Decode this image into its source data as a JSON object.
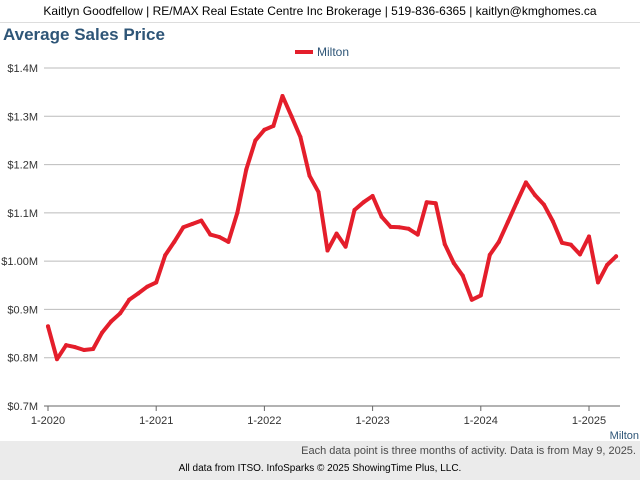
{
  "header": {
    "contact_line": "Kaitlyn Goodfellow | RE/MAX Real Estate Centre Inc Brokerage | 519-836-6365 | kaitlyn@kmghomes.ca"
  },
  "note": "Each data point is three months of activity. Data is from May 9, 2025.",
  "footer": "All data from ITSO. InfoSparks © 2025 ShowingTime Plus, LLC.",
  "colors": {
    "series": "#e41e2b",
    "title": "#2e5577",
    "grid": "#bbbbbb"
  },
  "chart_data": {
    "type": "line",
    "title": "Average Sales Price",
    "xlabel": "",
    "ylabel": "",
    "ylim": [
      700000,
      1400000
    ],
    "yticks": [
      {
        "value": 1400000,
        "label": "$1.4M"
      },
      {
        "value": 1300000,
        "label": "$1.3M"
      },
      {
        "value": 1200000,
        "label": "$1.2M"
      },
      {
        "value": 1100000,
        "label": "$1.1M"
      },
      {
        "value": 1000000,
        "label": "$1.00M"
      },
      {
        "value": 900000,
        "label": "$0.9M"
      },
      {
        "value": 800000,
        "label": "$0.8M"
      },
      {
        "value": 700000,
        "label": "$0.7M"
      }
    ],
    "xlim": [
      2020.0,
      2025.333
    ],
    "xticks": [
      {
        "value": 2020.0,
        "label": "1-2020"
      },
      {
        "value": 2021.0,
        "label": "1-2021"
      },
      {
        "value": 2022.0,
        "label": "1-2022"
      },
      {
        "value": 2023.0,
        "label": "1-2023"
      },
      {
        "value": 2024.0,
        "label": "1-2024"
      },
      {
        "value": 2025.0,
        "label": "1-2025"
      }
    ],
    "legend": "top-center",
    "series": [
      {
        "name": "Milton",
        "end_label": "Milton",
        "x": [
          2020.0,
          2020.083,
          2020.167,
          2020.25,
          2020.333,
          2020.417,
          2020.5,
          2020.583,
          2020.667,
          2020.75,
          2020.833,
          2020.917,
          2021.0,
          2021.083,
          2021.167,
          2021.25,
          2021.333,
          2021.417,
          2021.5,
          2021.583,
          2021.667,
          2021.75,
          2021.833,
          2021.917,
          2022.0,
          2022.083,
          2022.167,
          2022.25,
          2022.333,
          2022.417,
          2022.5,
          2022.583,
          2022.667,
          2022.75,
          2022.833,
          2022.917,
          2023.0,
          2023.083,
          2023.167,
          2023.25,
          2023.333,
          2023.417,
          2023.5,
          2023.583,
          2023.667,
          2023.75,
          2023.833,
          2023.917,
          2024.0,
          2024.083,
          2024.167,
          2024.25,
          2024.333,
          2024.417,
          2024.5,
          2024.583,
          2024.667,
          2024.75,
          2024.833,
          2024.917,
          2025.0,
          2025.083,
          2025.167,
          2025.25
        ],
        "values": [
          865000,
          797000,
          826000,
          822000,
          816000,
          818000,
          852000,
          875000,
          892000,
          920000,
          933000,
          947000,
          956000,
          1012000,
          1040000,
          1070000,
          1077000,
          1084000,
          1055000,
          1050000,
          1040000,
          1100000,
          1190000,
          1250000,
          1272000,
          1280000,
          1342000,
          1300000,
          1257000,
          1177000,
          1143000,
          1022000,
          1057000,
          1030000,
          1106000,
          1122000,
          1135000,
          1092000,
          1071000,
          1070000,
          1067000,
          1055000,
          1122000,
          1120000,
          1035000,
          996000,
          970000,
          920000,
          929000,
          1013000,
          1040000,
          1081000,
          1122000,
          1163000,
          1137000,
          1117000,
          1082000,
          1038000,
          1034000,
          1014000,
          1051000,
          956000,
          992000,
          1010000
        ]
      }
    ]
  }
}
